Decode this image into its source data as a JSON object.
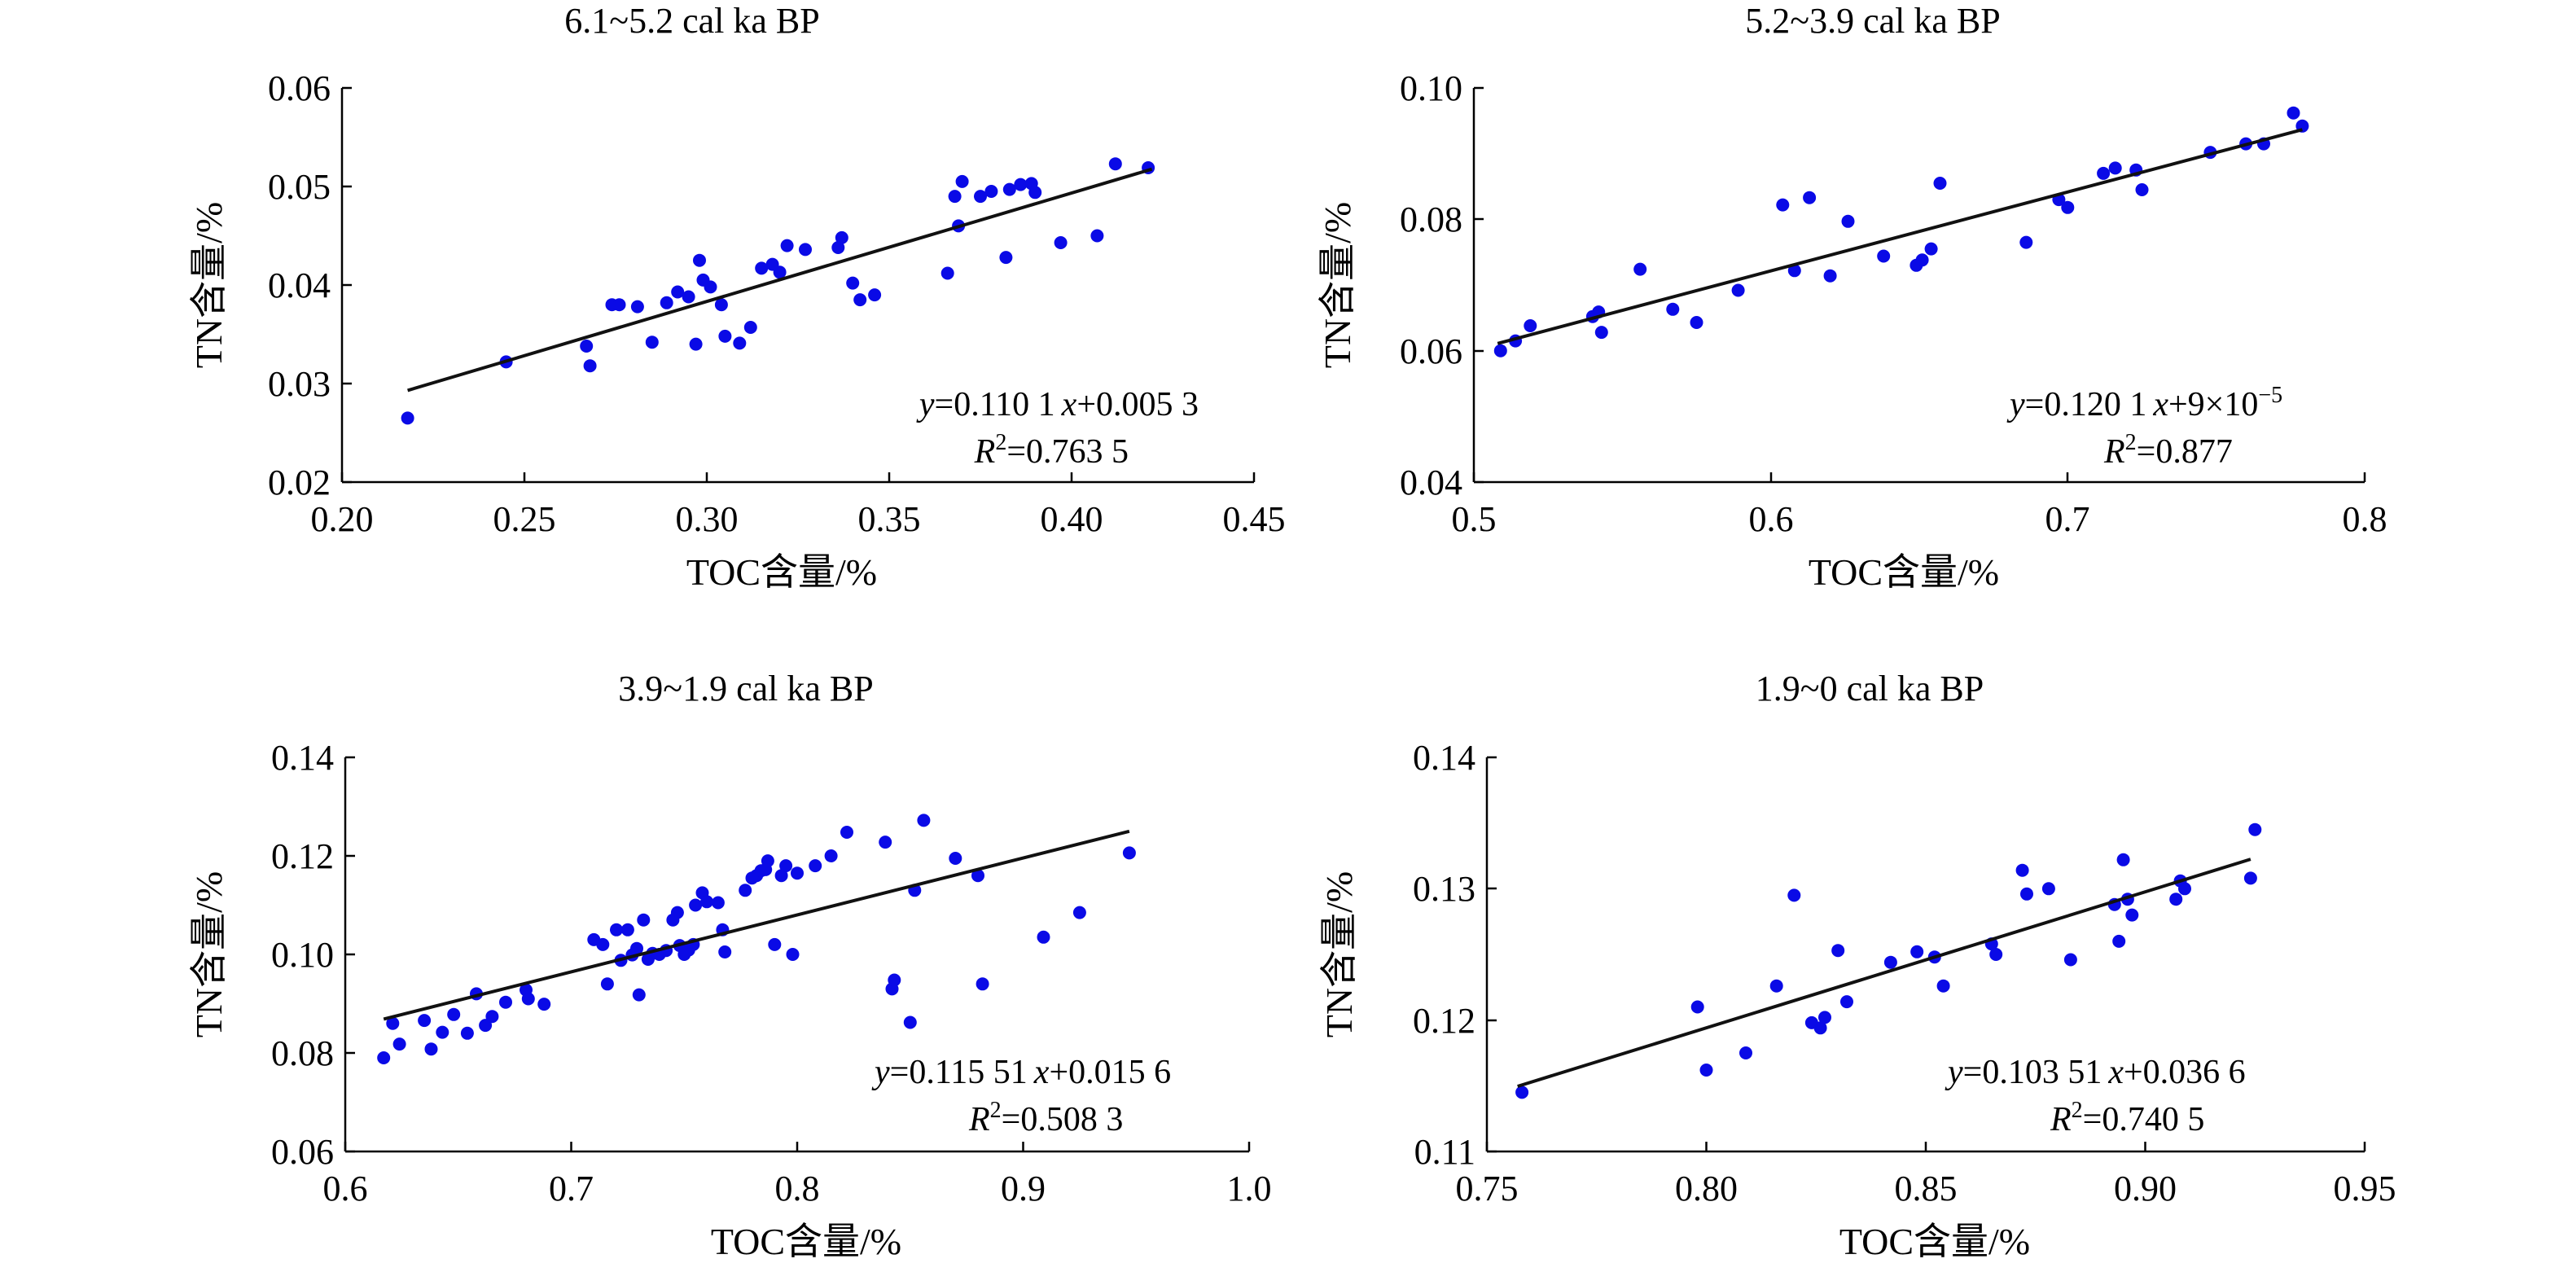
{
  "colors": {
    "points": "#0a0ae6",
    "fit": "#111111",
    "axis": "#000000"
  },
  "panels": [
    {
      "title": "6.1~5.2 cal ka BP",
      "xlabel": "TOC含量/%",
      "ylabel": "TN含量/%",
      "xticks": [
        "0.20",
        "0.25",
        "0.30",
        "0.35",
        "0.40",
        "0.45"
      ],
      "yticks": [
        "0.02",
        "0.03",
        "0.04",
        "0.05",
        "0.06"
      ],
      "eq": {
        "y": "y",
        "mid": "=0.110 1",
        "x": "x",
        "rest": "+0.005 3"
      },
      "r2": {
        "r": "R",
        "sup": "2",
        "val": "=0.763 5"
      }
    },
    {
      "title": "5.2~3.9 cal ka BP",
      "xlabel": "TOC含量/%",
      "ylabel": "TN含量/%",
      "xticks": [
        "0.5",
        "0.6",
        "0.7",
        "0.8"
      ],
      "yticks": [
        "0.04",
        "0.06",
        "0.08",
        "0.10"
      ],
      "eq": {
        "y": "y",
        "mid": "=0.120 1",
        "x": "x",
        "rest": "+9×10",
        "sup": "−5"
      },
      "r2": {
        "r": "R",
        "sup": "2",
        "val": "=0.877"
      }
    },
    {
      "title": "3.9~1.9 cal ka BP",
      "xlabel": "TOC含量/%",
      "ylabel": "TN含量/%",
      "xticks": [
        "0.6",
        "0.7",
        "0.8",
        "0.9",
        "1.0"
      ],
      "yticks": [
        "0.06",
        "0.08",
        "0.10",
        "0.12",
        "0.14"
      ],
      "eq": {
        "y": "y",
        "mid": "=0.115 51",
        "x": "x",
        "rest": "+0.015 6"
      },
      "r2": {
        "r": "R",
        "sup": "2",
        "val": "=0.508 3"
      }
    },
    {
      "title": "1.9~0 cal ka BP",
      "xlabel": "TOC含量/%",
      "ylabel": "TN含量/%",
      "xticks": [
        "0.75",
        "0.80",
        "0.85",
        "0.90",
        "0.95"
      ],
      "yticks": [
        "0.11",
        "0.12",
        "0.13",
        "0.14"
      ],
      "eq": {
        "y": "y",
        "mid": "=0.103 51",
        "x": "x",
        "rest": "+0.036 6"
      },
      "r2": {
        "r": "R",
        "sup": "2",
        "val": "=0.740 5"
      }
    }
  ],
  "chart_data": [
    {
      "type": "scatter",
      "title": "6.1~5.2 cal ka BP",
      "xlabel": "TOC含量/%",
      "ylabel": "TN含量/%",
      "xlim": [
        0.2,
        0.45
      ],
      "ylim": [
        0.02,
        0.06
      ],
      "fit": {
        "slope": 0.1101,
        "intercept": 0.0053,
        "r2": 0.7635,
        "x_range": [
          0.218,
          0.422
        ]
      },
      "points": [
        [
          0.218,
          0.0265
        ],
        [
          0.245,
          0.0322
        ],
        [
          0.267,
          0.0338
        ],
        [
          0.268,
          0.0318
        ],
        [
          0.274,
          0.038
        ],
        [
          0.276,
          0.038
        ],
        [
          0.281,
          0.0378
        ],
        [
          0.285,
          0.0342
        ],
        [
          0.289,
          0.0382
        ],
        [
          0.292,
          0.0393
        ],
        [
          0.295,
          0.0388
        ],
        [
          0.297,
          0.034
        ],
        [
          0.298,
          0.0425
        ],
        [
          0.299,
          0.0405
        ],
        [
          0.301,
          0.0398
        ],
        [
          0.304,
          0.038
        ],
        [
          0.305,
          0.0348
        ],
        [
          0.309,
          0.0341
        ],
        [
          0.312,
          0.0357
        ],
        [
          0.315,
          0.0417
        ],
        [
          0.318,
          0.0421
        ],
        [
          0.32,
          0.0413
        ],
        [
          0.322,
          0.044
        ],
        [
          0.327,
          0.0436
        ],
        [
          0.336,
          0.0438
        ],
        [
          0.337,
          0.0448
        ],
        [
          0.34,
          0.0402
        ],
        [
          0.342,
          0.0385
        ],
        [
          0.346,
          0.039
        ],
        [
          0.366,
          0.0412
        ],
        [
          0.368,
          0.049
        ],
        [
          0.369,
          0.046
        ],
        [
          0.37,
          0.0505
        ],
        [
          0.375,
          0.049
        ],
        [
          0.378,
          0.0495
        ],
        [
          0.382,
          0.0428
        ],
        [
          0.383,
          0.0497
        ],
        [
          0.386,
          0.0502
        ],
        [
          0.389,
          0.0503
        ],
        [
          0.39,
          0.0494
        ],
        [
          0.397,
          0.0443
        ],
        [
          0.407,
          0.045
        ],
        [
          0.412,
          0.0523
        ],
        [
          0.421,
          0.0519
        ]
      ]
    },
    {
      "type": "scatter",
      "title": "5.2~3.9 cal ka BP",
      "xlabel": "TOC含量/%",
      "ylabel": "TN含量/%",
      "xlim": [
        0.5,
        0.8
      ],
      "ylim": [
        0.04,
        0.1
      ],
      "fit": {
        "slope": 0.1201,
        "intercept": 9e-05,
        "r2": 0.877,
        "x_range": [
          0.508,
          0.779
        ]
      },
      "points": [
        [
          0.509,
          0.06
        ],
        [
          0.514,
          0.0615
        ],
        [
          0.519,
          0.0638
        ],
        [
          0.54,
          0.0652
        ],
        [
          0.542,
          0.0659
        ],
        [
          0.543,
          0.0628
        ],
        [
          0.556,
          0.0724
        ],
        [
          0.567,
          0.0663
        ],
        [
          0.575,
          0.0643
        ],
        [
          0.589,
          0.0692
        ],
        [
          0.604,
          0.0822
        ],
        [
          0.608,
          0.0722
        ],
        [
          0.613,
          0.0833
        ],
        [
          0.62,
          0.0714
        ],
        [
          0.626,
          0.0797
        ],
        [
          0.638,
          0.0744
        ],
        [
          0.649,
          0.073
        ],
        [
          0.651,
          0.0738
        ],
        [
          0.654,
          0.0755
        ],
        [
          0.657,
          0.0855
        ],
        [
          0.686,
          0.0765
        ],
        [
          0.697,
          0.083
        ],
        [
          0.7,
          0.0818
        ],
        [
          0.712,
          0.087
        ],
        [
          0.716,
          0.0878
        ],
        [
          0.723,
          0.0875
        ],
        [
          0.725,
          0.0845
        ],
        [
          0.748,
          0.0902
        ],
        [
          0.76,
          0.0915
        ],
        [
          0.766,
          0.0915
        ],
        [
          0.776,
          0.0962
        ],
        [
          0.779,
          0.0942
        ]
      ]
    },
    {
      "type": "scatter",
      "title": "3.9~1.9 cal ka BP",
      "xlabel": "TOC含量/%",
      "ylabel": "TN含量/%",
      "xlim": [
        0.6,
        1.0
      ],
      "ylim": [
        0.06,
        0.14
      ],
      "fit": {
        "slope": 0.11551,
        "intercept": 0.0156,
        "r2": 0.5083,
        "x_range": [
          0.617,
          0.947
        ]
      },
      "points": [
        [
          0.617,
          0.079
        ],
        [
          0.621,
          0.086
        ],
        [
          0.624,
          0.0818
        ],
        [
          0.635,
          0.0866
        ],
        [
          0.638,
          0.0808
        ],
        [
          0.643,
          0.0842
        ],
        [
          0.648,
          0.0878
        ],
        [
          0.654,
          0.084
        ],
        [
          0.658,
          0.092
        ],
        [
          0.662,
          0.0856
        ],
        [
          0.665,
          0.0874
        ],
        [
          0.671,
          0.0903
        ],
        [
          0.68,
          0.0928
        ],
        [
          0.681,
          0.091
        ],
        [
          0.688,
          0.0899
        ],
        [
          0.71,
          0.103
        ],
        [
          0.714,
          0.102
        ],
        [
          0.716,
          0.094
        ],
        [
          0.72,
          0.105
        ],
        [
          0.722,
          0.0988
        ],
        [
          0.725,
          0.105
        ],
        [
          0.727,
          0.0999
        ],
        [
          0.729,
          0.1012
        ],
        [
          0.73,
          0.0918
        ],
        [
          0.732,
          0.107
        ],
        [
          0.734,
          0.099
        ],
        [
          0.736,
          0.1002
        ],
        [
          0.739,
          0.1
        ],
        [
          0.742,
          0.1008
        ],
        [
          0.745,
          0.107
        ],
        [
          0.747,
          0.1085
        ],
        [
          0.748,
          0.1018
        ],
        [
          0.75,
          0.1
        ],
        [
          0.752,
          0.1009
        ],
        [
          0.754,
          0.102
        ],
        [
          0.755,
          0.11
        ],
        [
          0.758,
          0.1125
        ],
        [
          0.76,
          0.1107
        ],
        [
          0.765,
          0.1105
        ],
        [
          0.767,
          0.105
        ],
        [
          0.768,
          0.1005
        ],
        [
          0.777,
          0.113
        ],
        [
          0.78,
          0.1155
        ],
        [
          0.782,
          0.116
        ],
        [
          0.784,
          0.117
        ],
        [
          0.786,
          0.1172
        ],
        [
          0.787,
          0.119
        ],
        [
          0.79,
          0.102
        ],
        [
          0.793,
          0.116
        ],
        [
          0.795,
          0.118
        ],
        [
          0.798,
          0.1
        ],
        [
          0.8,
          0.1165
        ],
        [
          0.808,
          0.118
        ],
        [
          0.815,
          0.12
        ],
        [
          0.822,
          0.1248
        ],
        [
          0.839,
          0.1228
        ],
        [
          0.842,
          0.093
        ],
        [
          0.843,
          0.0948
        ],
        [
          0.85,
          0.0862
        ],
        [
          0.852,
          0.113
        ],
        [
          0.856,
          0.1272
        ],
        [
          0.87,
          0.1195
        ],
        [
          0.88,
          0.116
        ],
        [
          0.882,
          0.094
        ],
        [
          0.909,
          0.1035
        ],
        [
          0.925,
          0.1085
        ],
        [
          0.947,
          0.1206
        ]
      ]
    },
    {
      "type": "scatter",
      "title": "1.9~0 cal ka BP",
      "xlabel": "TOC含量/%",
      "ylabel": "TN含量/%",
      "xlim": [
        0.75,
        0.95
      ],
      "ylim": [
        0.11,
        0.14
      ],
      "fit": {
        "slope": 0.10351,
        "intercept": 0.0366,
        "r2": 0.7405,
        "x_range": [
          0.757,
          0.924
        ]
      },
      "points": [
        [
          0.758,
          0.1145
        ],
        [
          0.798,
          0.121
        ],
        [
          0.8,
          0.1162
        ],
        [
          0.809,
          0.1175
        ],
        [
          0.816,
          0.1226
        ],
        [
          0.82,
          0.1295
        ],
        [
          0.824,
          0.1198
        ],
        [
          0.826,
          0.1194
        ],
        [
          0.827,
          0.1202
        ],
        [
          0.83,
          0.1253
        ],
        [
          0.832,
          0.1214
        ],
        [
          0.842,
          0.1244
        ],
        [
          0.848,
          0.1252
        ],
        [
          0.852,
          0.1248
        ],
        [
          0.854,
          0.1226
        ],
        [
          0.865,
          0.1258
        ],
        [
          0.866,
          0.125
        ],
        [
          0.872,
          0.1314
        ],
        [
          0.873,
          0.1296
        ],
        [
          0.878,
          0.13
        ],
        [
          0.883,
          0.1246
        ],
        [
          0.893,
          0.1288
        ],
        [
          0.894,
          0.126
        ],
        [
          0.895,
          0.1322
        ],
        [
          0.896,
          0.1292
        ],
        [
          0.897,
          0.128
        ],
        [
          0.907,
          0.1292
        ],
        [
          0.908,
          0.1306
        ],
        [
          0.909,
          0.13
        ],
        [
          0.924,
          0.1308
        ],
        [
          0.925,
          0.1345
        ]
      ]
    }
  ]
}
